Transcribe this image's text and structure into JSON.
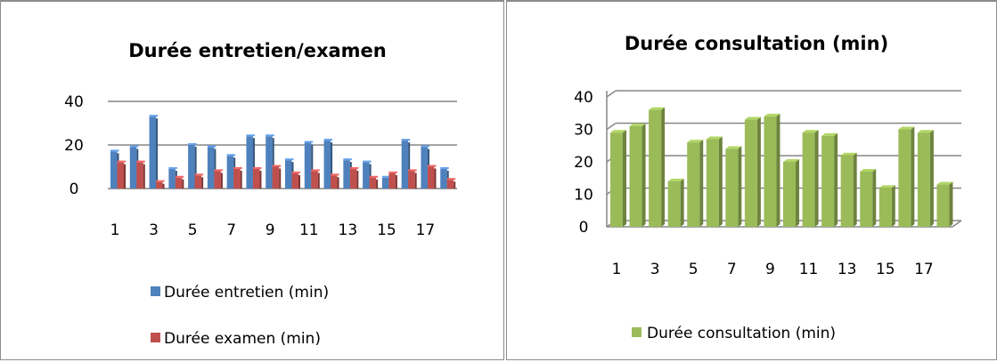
{
  "chart_data": [
    {
      "type": "bar",
      "title": "Durée entretien/examen",
      "categories": [
        "1",
        "2",
        "3",
        "4",
        "5",
        "6",
        "7",
        "8",
        "9",
        "10",
        "11",
        "12",
        "13",
        "14",
        "15",
        "16",
        "17",
        "18"
      ],
      "x_tick_labels": [
        "1",
        "3",
        "5",
        "7",
        "9",
        "11",
        "13",
        "15",
        "17"
      ],
      "y_tick_labels": [
        "0",
        "20",
        "40"
      ],
      "ylim": [
        0,
        40
      ],
      "grid": true,
      "legend_position": "bottom",
      "series": [
        {
          "name": "Durée entretien (min)",
          "color": "#4f81bd",
          "values": [
            17,
            19,
            33,
            9,
            20,
            19,
            15,
            24,
            24,
            13,
            21,
            22,
            13,
            12,
            5,
            22,
            19,
            9
          ]
        },
        {
          "name": "Durée examen (min)",
          "color": "#c0504d",
          "values": [
            12,
            12,
            3,
            5,
            6,
            8,
            9,
            9,
            10,
            7,
            8,
            6,
            9,
            5,
            7,
            8,
            10,
            4
          ]
        }
      ]
    },
    {
      "type": "bar",
      "title": "Durée consultation  (min)",
      "categories": [
        "1",
        "2",
        "3",
        "4",
        "5",
        "6",
        "7",
        "8",
        "9",
        "10",
        "11",
        "12",
        "13",
        "14",
        "15",
        "16",
        "17",
        "18"
      ],
      "x_tick_labels": [
        "1",
        "3",
        "5",
        "7",
        "9",
        "11",
        "13",
        "15",
        "17"
      ],
      "y_tick_labels": [
        "0",
        "10",
        "20",
        "30",
        "40"
      ],
      "ylim": [
        0,
        40
      ],
      "grid": true,
      "legend_position": "bottom",
      "series": [
        {
          "name": "Durée consultation  (min)",
          "color": "#9bbb59",
          "values": [
            29,
            31,
            36,
            14,
            26,
            27,
            24,
            33,
            34,
            20,
            29,
            28,
            22,
            17,
            12,
            30,
            29,
            13
          ]
        }
      ]
    }
  ]
}
